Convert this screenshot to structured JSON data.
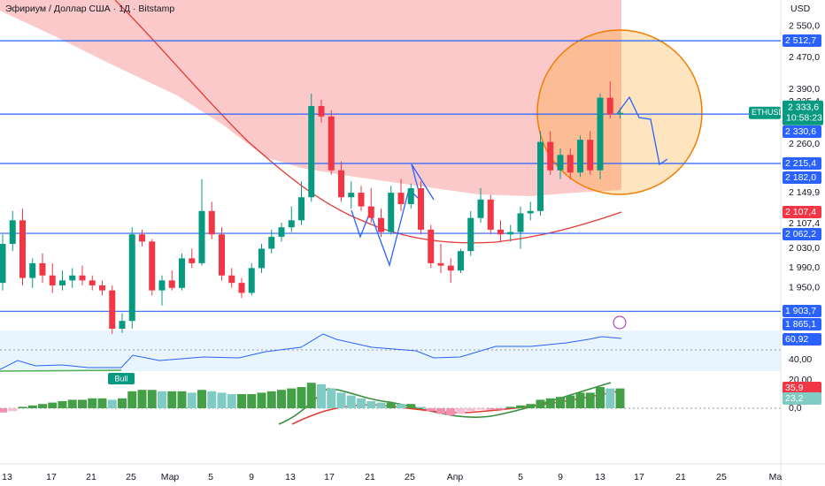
{
  "chart_data": {
    "type": "candlestick",
    "title": "Эфириум / Доллар США · 1Д · Bitstamp",
    "currency": "USD",
    "symbol": "ETHUSD",
    "countdown": "10:58:23",
    "log_scale": true,
    "ylim": [
      2620,
      1870
    ],
    "yticks": [
      {
        "value": 2550,
        "label": "2 550,0"
      },
      {
        "value": 2470,
        "label": "2 470,0"
      },
      {
        "value": 2390,
        "label": "2 390,0"
      },
      {
        "value": 2260,
        "label": "2 260,0"
      },
      {
        "value": 2030,
        "label": "2 030,0"
      },
      {
        "value": 1990,
        "label": "1 990,0"
      },
      {
        "value": 1950,
        "label": "1 950,0"
      }
    ],
    "x_labels": [
      "13",
      "17",
      "21",
      "25",
      "Мар",
      "5",
      "9",
      "13",
      "17",
      "21",
      "25",
      "Апр",
      "5",
      "9",
      "13",
      "17",
      "21",
      "25",
      "Ма"
    ],
    "up_color": "#089981",
    "down_color": "#f23645",
    "open": [
      1960,
      2040,
      2090,
      1970,
      2000,
      1975,
      1955,
      1965,
      1975,
      1965,
      1955,
      1945,
      1870,
      1885,
      2060,
      2045,
      1945,
      1965,
      1950,
      2010,
      2000,
      2110,
      2060,
      1975,
      1960,
      1940,
      1990,
      2030,
      2055,
      2075,
      2090,
      2140,
      2350,
      2325,
      2200,
      2140,
      2150,
      2120,
      2095,
      2065,
      2150,
      2125,
      2160,
      2070,
      2000,
      1995,
      1985,
      2025,
      2095,
      2135,
      2070,
      2060,
      2065,
      2105,
      2110,
      2265,
      2200,
      2235,
      2195,
      2270,
      2200,
      2370,
      2330
    ],
    "high": [
      2060,
      2110,
      2115,
      2010,
      2020,
      2000,
      1985,
      1990,
      1995,
      1975,
      1965,
      1955,
      1900,
      2075,
      2070,
      2050,
      1975,
      1985,
      2020,
      2030,
      2180,
      2130,
      2075,
      1990,
      1970,
      2000,
      2040,
      2070,
      2085,
      2120,
      2175,
      2380,
      2365,
      2340,
      2220,
      2175,
      2165,
      2160,
      2115,
      2165,
      2180,
      2170,
      2175,
      2080,
      2040,
      2010,
      2030,
      2110,
      2160,
      2145,
      2090,
      2080,
      2120,
      2130,
      2290,
      2290,
      2250,
      2250,
      2280,
      2290,
      2380,
      2410,
      2345
    ],
    "low": [
      1945,
      2025,
      1955,
      1950,
      1960,
      1940,
      1945,
      1950,
      1955,
      1945,
      1935,
      1860,
      1862,
      1870,
      2035,
      1935,
      1915,
      1945,
      1945,
      1990,
      1995,
      2050,
      1965,
      1950,
      1930,
      1935,
      1980,
      2020,
      2045,
      2065,
      2080,
      2130,
      2310,
      2190,
      2130,
      2115,
      2110,
      2085,
      2055,
      2060,
      2110,
      2115,
      2060,
      1990,
      1980,
      1960,
      1980,
      2015,
      2085,
      2060,
      2045,
      2045,
      2030,
      2090,
      2100,
      2190,
      2180,
      2180,
      2185,
      2190,
      2180,
      2320,
      2320
    ],
    "close": [
      2040,
      2090,
      1970,
      2000,
      1975,
      1955,
      1965,
      1975,
      1965,
      1955,
      1945,
      1870,
      1885,
      2060,
      2045,
      1945,
      1965,
      1950,
      2010,
      2000,
      2110,
      2060,
      1975,
      1960,
      1940,
      1990,
      2030,
      2055,
      2075,
      2090,
      2140,
      2350,
      2325,
      2200,
      2140,
      2150,
      2120,
      2095,
      2065,
      2150,
      2125,
      2160,
      2070,
      2000,
      1995,
      1985,
      2025,
      2095,
      2135,
      2070,
      2060,
      2065,
      2105,
      2110,
      2265,
      2200,
      2235,
      2195,
      2270,
      2200,
      2370,
      2330,
      2333.6
    ],
    "current_price": {
      "value": 2333.6,
      "label": "2 333,6"
    },
    "levels": [
      {
        "value": 2512.7,
        "label": "2 512,7"
      },
      {
        "value": 2330.6,
        "label": "2 330,6"
      },
      {
        "value": 2215.4,
        "label": "2 215,4"
      },
      {
        "value": 2062.2,
        "label": "2 062,2"
      },
      {
        "value": 1903.7,
        "label": "1 903,7"
      }
    ],
    "level_color": "#2962ff",
    "tags": [
      {
        "value": 2182,
        "label": "2 182,0",
        "color": "#2962ff"
      },
      {
        "value": 1865.1,
        "label": "1 865,1",
        "color": "#2962ff"
      },
      {
        "value": 2107.4,
        "label": "2 107,4",
        "color": "#f23645"
      }
    ],
    "price_labels": [
      {
        "value": 2335.4,
        "label": "2 335,4"
      },
      {
        "value": 2149.9,
        "label": "2 149,9"
      },
      {
        "value": 2107.4,
        "label": "2 107,4"
      }
    ],
    "rsi": {
      "value": 60.92,
      "label": "60,92",
      "ticks": [
        {
          "value": 40,
          "label": "40,00"
        }
      ],
      "signal": "Bull"
    },
    "macd": {
      "ticks": [
        {
          "value": 20,
          "label": "20,00"
        },
        {
          "value": 0,
          "label": "0,0"
        }
      ],
      "macd": {
        "value": 35.9,
        "label": "35,9"
      },
      "signal": {
        "value": 23.2,
        "label": "23,2"
      },
      "histogram": [
        -3,
        -2,
        1,
        2,
        3,
        4,
        5,
        6,
        6,
        7,
        7,
        6,
        7,
        12,
        13,
        13,
        12,
        12,
        12,
        11,
        13,
        12,
        11,
        10,
        10,
        10,
        11,
        12,
        13,
        14,
        15,
        18,
        17,
        14,
        11,
        9,
        7,
        5,
        4,
        4,
        3,
        3,
        1,
        -2,
        -4,
        -5,
        -4,
        -2,
        -1,
        -1,
        -1,
        1,
        2,
        3,
        6,
        7,
        8,
        9,
        11,
        11,
        15,
        14,
        14
      ]
    }
  }
}
